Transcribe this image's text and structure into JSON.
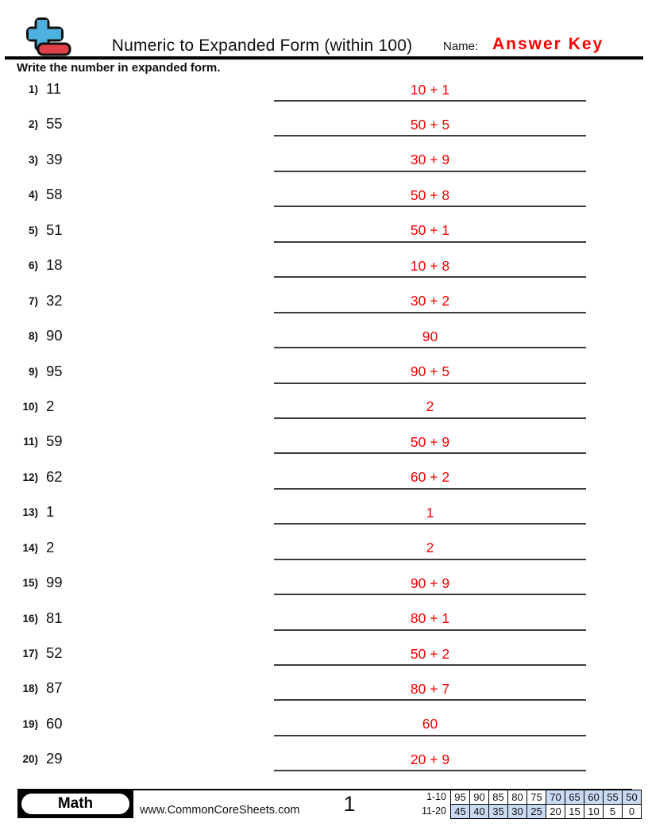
{
  "header": {
    "title": "Numeric to Expanded Form (within 100)",
    "name_label": "Name:",
    "name_value": "Answer Key",
    "instruction": "Write the number in expanded form."
  },
  "problems": [
    {
      "num": "1)",
      "value": "11",
      "answer": "10 + 1"
    },
    {
      "num": "2)",
      "value": "55",
      "answer": "50 + 5"
    },
    {
      "num": "3)",
      "value": "39",
      "answer": "30 + 9"
    },
    {
      "num": "4)",
      "value": "58",
      "answer": "50 + 8"
    },
    {
      "num": "5)",
      "value": "51",
      "answer": "50 + 1"
    },
    {
      "num": "6)",
      "value": "18",
      "answer": "10 + 8"
    },
    {
      "num": "7)",
      "value": "32",
      "answer": "30 + 2"
    },
    {
      "num": "8)",
      "value": "90",
      "answer": "90"
    },
    {
      "num": "9)",
      "value": "95",
      "answer": "90 + 5"
    },
    {
      "num": "10)",
      "value": "2",
      "answer": "2"
    },
    {
      "num": "11)",
      "value": "59",
      "answer": "50 + 9"
    },
    {
      "num": "12)",
      "value": "62",
      "answer": "60 + 2"
    },
    {
      "num": "13)",
      "value": "1",
      "answer": "1"
    },
    {
      "num": "14)",
      "value": "2",
      "answer": "2"
    },
    {
      "num": "15)",
      "value": "99",
      "answer": "90 + 9"
    },
    {
      "num": "16)",
      "value": "81",
      "answer": "80 + 1"
    },
    {
      "num": "17)",
      "value": "52",
      "answer": "50 + 2"
    },
    {
      "num": "18)",
      "value": "87",
      "answer": "80 + 7"
    },
    {
      "num": "19)",
      "value": "60",
      "answer": "60"
    },
    {
      "num": "20)",
      "value": "29",
      "answer": "20 + 9"
    }
  ],
  "footer": {
    "subject_label": "Math",
    "website": "www.CommonCoreSheets.com",
    "page_number": "1",
    "score_rows": [
      {
        "label": "1-10",
        "cells": [
          "95",
          "90",
          "85",
          "80",
          "75",
          "70",
          "65",
          "60",
          "55",
          "50"
        ],
        "shaded": [
          false,
          false,
          false,
          false,
          false,
          true,
          true,
          true,
          true,
          true
        ]
      },
      {
        "label": "11-20",
        "cells": [
          "45",
          "40",
          "35",
          "30",
          "25",
          "20",
          "15",
          "10",
          "5",
          "0"
        ],
        "shaded": [
          true,
          true,
          true,
          true,
          true,
          false,
          false,
          false,
          false,
          false
        ]
      }
    ]
  },
  "colors": {
    "answer_red": "#fa0000",
    "logo_blue": "#4db1de",
    "logo_red": "#e0424a",
    "score_shade": "#c9daf2"
  }
}
